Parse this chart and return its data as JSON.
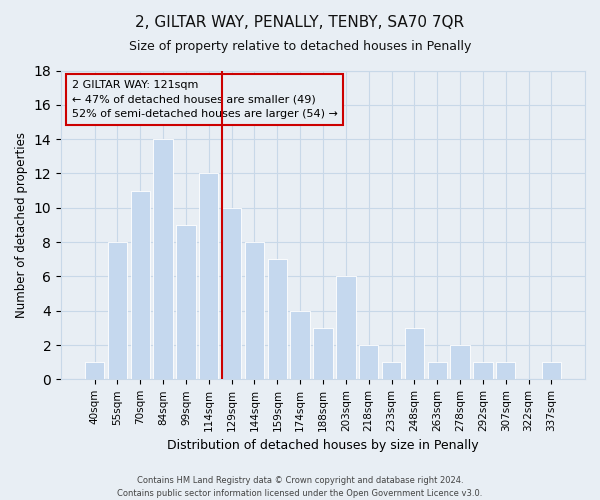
{
  "title": "2, GILTAR WAY, PENALLY, TENBY, SA70 7QR",
  "subtitle": "Size of property relative to detached houses in Penally",
  "xlabel": "Distribution of detached houses by size in Penally",
  "ylabel": "Number of detached properties",
  "bar_labels": [
    "40sqm",
    "55sqm",
    "70sqm",
    "84sqm",
    "99sqm",
    "114sqm",
    "129sqm",
    "144sqm",
    "159sqm",
    "174sqm",
    "188sqm",
    "203sqm",
    "218sqm",
    "233sqm",
    "248sqm",
    "263sqm",
    "278sqm",
    "292sqm",
    "307sqm",
    "322sqm",
    "337sqm"
  ],
  "bar_values": [
    1,
    8,
    11,
    14,
    9,
    12,
    10,
    8,
    7,
    4,
    3,
    6,
    2,
    1,
    3,
    1,
    2,
    1,
    1,
    0,
    1
  ],
  "bar_color": "#c5d8ee",
  "bar_edgecolor": "#ffffff",
  "vline_x_index": 6,
  "vline_color": "#cc0000",
  "annotation_text": "2 GILTAR WAY: 121sqm\n← 47% of detached houses are smaller (49)\n52% of semi-detached houses are larger (54) →",
  "annotation_box_edgecolor": "#cc0000",
  "ylim": [
    0,
    18
  ],
  "yticks": [
    0,
    2,
    4,
    6,
    8,
    10,
    12,
    14,
    16,
    18
  ],
  "grid_color": "#c8d8e8",
  "background_color": "#e8eef4",
  "plot_bg_color": "#e8eef4",
  "title_fontsize": 11,
  "subtitle_fontsize": 9,
  "footer_line1": "Contains HM Land Registry data © Crown copyright and database right 2024.",
  "footer_line2": "Contains public sector information licensed under the Open Government Licence v3.0."
}
